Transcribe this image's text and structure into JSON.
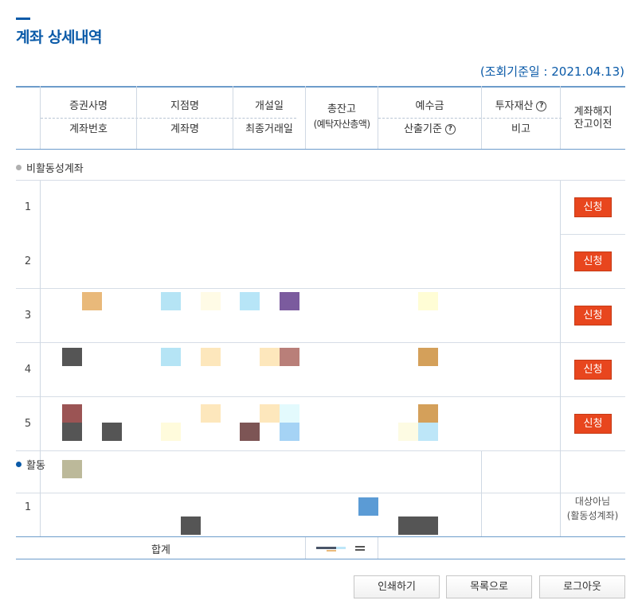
{
  "page": {
    "title": "계좌 상세내역",
    "base_date": "(조회기준일 : 2021.04.13)"
  },
  "table": {
    "headers": {
      "broker": "증권사명",
      "account_no": "계좌번호",
      "branch": "지점명",
      "account_name": "계좌명",
      "open_date": "개설일",
      "last_trade_date": "최종거래일",
      "total_balance": "총잔고",
      "total_balance_sub": "(예탁자산총액)",
      "deposit": "예수금",
      "calc_basis": "산출기준",
      "invest_assets": "투자재산",
      "note": "비고",
      "close_transfer_1": "계좌해지",
      "close_transfer_2": "잔고이전",
      "help": "?"
    },
    "inactive_section": {
      "label": "비활동성계좌",
      "rows": [
        {
          "num": "1",
          "action": "신청"
        },
        {
          "num": "2",
          "action": "신청"
        },
        {
          "num": "3",
          "action": "신청"
        },
        {
          "num": "4",
          "action": "신청"
        },
        {
          "num": "5",
          "action": "신청"
        }
      ]
    },
    "active_section": {
      "label": "활동",
      "rows": [
        {
          "num": "1",
          "status_1": "대상아님",
          "status_2": "(활동성계좌)"
        }
      ]
    },
    "total_label": "합계"
  },
  "buttons": {
    "print": "인쇄하기",
    "list": "목록으로",
    "logout": "로그아웃"
  },
  "colors": {
    "accent": "#0a5aa8",
    "apply_button": "#e8461e"
  }
}
